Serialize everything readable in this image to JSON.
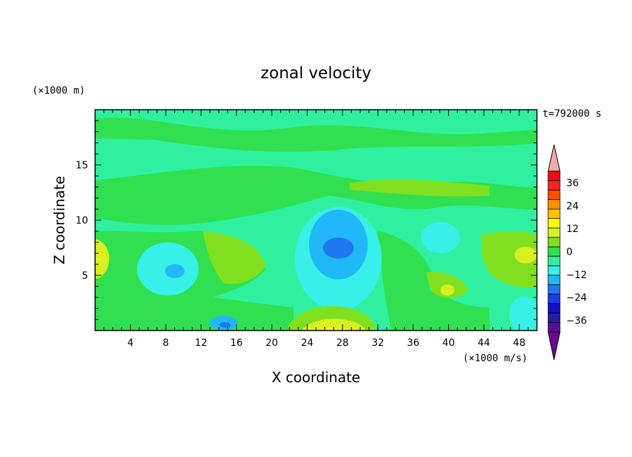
{
  "chart_data": {
    "type": "heatmap",
    "title": "zonal velocity",
    "xlabel": "X coordinate",
    "ylabel": "Z coordinate",
    "x_unit": "(×1000 m/s)",
    "y_unit": "(×1000 m)",
    "time_label": "t=792000 s",
    "xlim": [
      0,
      50
    ],
    "ylim": [
      0,
      20
    ],
    "x_ticks": [
      4,
      8,
      12,
      16,
      20,
      24,
      28,
      32,
      36,
      40,
      44,
      48
    ],
    "y_ticks": [
      5,
      10,
      15
    ],
    "colorbar": {
      "ticks": [
        36,
        24,
        12,
        0,
        -12,
        -24,
        -36
      ],
      "levels": [
        -42,
        -36,
        -30,
        -24,
        -18,
        -12,
        -6,
        0,
        6,
        12,
        18,
        24,
        30,
        36,
        42
      ],
      "colors": [
        "#6a0a8a",
        "#5a0a9c",
        "#2a1aa8",
        "#1010c8",
        "#1a3ce0",
        "#1e78f0",
        "#20b8f8",
        "#38f0e8",
        "#30f0a0",
        "#30e050",
        "#80e020",
        "#d8f020",
        "#ffff00",
        "#ffc000",
        "#ff9000",
        "#ff5000",
        "#ff2020",
        "#ee1010",
        "#f4a8a8"
      ]
    },
    "features": [
      {
        "x": 27.5,
        "z": 7.5,
        "value": -18
      },
      {
        "x": 27.5,
        "z": 1.5,
        "value": 12
      },
      {
        "x": 9.5,
        "z": 5.5,
        "value": -10
      },
      {
        "x": 15,
        "z": 0.6,
        "value": -18
      },
      {
        "x": 39.5,
        "z": 3.5,
        "value": 6
      },
      {
        "x": 40,
        "z": 8.5,
        "value": -8
      },
      {
        "x": 47,
        "z": 7.5,
        "value": 8
      },
      {
        "x": 1,
        "z": 7,
        "value": 8
      }
    ]
  }
}
